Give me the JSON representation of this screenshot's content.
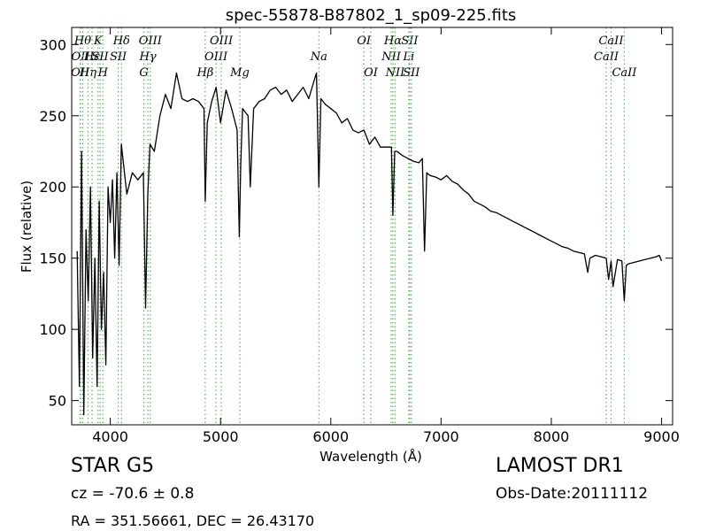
{
  "chart_data": {
    "type": "line",
    "title": "spec-55878-B87802_1_sp09-225.fits",
    "xlabel": "Wavelength (Å)",
    "ylabel": "Flux (relative)",
    "xlim": [
      3650,
      9100
    ],
    "ylim": [
      33,
      312
    ],
    "xticks": [
      4000,
      5000,
      6000,
      7000,
      8000,
      9000
    ],
    "yticks": [
      50,
      100,
      150,
      200,
      250,
      300
    ],
    "grid": false,
    "series": [
      {
        "color": "#000000",
        "x": [
          3700,
          3720,
          3740,
          3760,
          3780,
          3800,
          3820,
          3840,
          3860,
          3880,
          3900,
          3920,
          3940,
          3960,
          3980,
          4000,
          4020,
          4040,
          4060,
          4080,
          4100,
          4150,
          4200,
          4250,
          4300,
          4320,
          4340,
          4360,
          4400,
          4450,
          4500,
          4550,
          4600,
          4650,
          4700,
          4750,
          4800,
          4850,
          4861,
          4880,
          4920,
          4960,
          5000,
          5050,
          5100,
          5150,
          5170,
          5183,
          5200,
          5250,
          5270,
          5300,
          5350,
          5400,
          5450,
          5500,
          5550,
          5600,
          5650,
          5700,
          5750,
          5800,
          5850,
          5870,
          5892,
          5910,
          5950,
          6000,
          6050,
          6100,
          6150,
          6200,
          6250,
          6300,
          6350,
          6400,
          6450,
          6500,
          6550,
          6563,
          6580,
          6600,
          6650,
          6700,
          6750,
          6800,
          6830,
          6850,
          6870,
          6900,
          6950,
          7000,
          7050,
          7100,
          7150,
          7200,
          7250,
          7300,
          7350,
          7400,
          7450,
          7500,
          7550,
          7600,
          7650,
          7700,
          7750,
          7800,
          7850,
          7900,
          7950,
          8000,
          8050,
          8100,
          8150,
          8200,
          8250,
          8300,
          8330,
          8350,
          8400,
          8450,
          8498,
          8520,
          8542,
          8560,
          8600,
          8640,
          8662,
          8680,
          8700,
          8750,
          8800,
          8850,
          8900,
          8950,
          8980,
          9000
        ],
        "y": [
          155,
          60,
          225,
          40,
          170,
          120,
          200,
          80,
          150,
          60,
          190,
          100,
          140,
          75,
          200,
          175,
          205,
          150,
          210,
          145,
          230,
          195,
          210,
          205,
          210,
          115,
          195,
          230,
          225,
          250,
          265,
          255,
          280,
          262,
          260,
          262,
          260,
          255,
          190,
          245,
          260,
          270,
          245,
          268,
          255,
          240,
          165,
          215,
          255,
          250,
          200,
          255,
          260,
          262,
          268,
          270,
          265,
          268,
          260,
          265,
          270,
          262,
          275,
          280,
          200,
          262,
          258,
          255,
          252,
          245,
          248,
          240,
          238,
          240,
          230,
          235,
          228,
          228,
          228,
          180,
          225,
          225,
          222,
          220,
          218,
          217,
          220,
          155,
          210,
          208,
          207,
          205,
          208,
          204,
          202,
          198,
          195,
          190,
          188,
          186,
          183,
          182,
          180,
          178,
          176,
          174,
          172,
          170,
          168,
          166,
          164,
          162,
          160,
          158,
          157,
          155,
          154,
          153,
          140,
          150,
          152,
          151,
          150,
          135,
          148,
          130,
          149,
          148,
          120,
          145,
          146,
          147,
          148,
          149,
          150,
          151,
          152,
          148
        ]
      }
    ],
    "line_markers": [
      {
        "wavelength": 3727,
        "label": "OII",
        "row": 3,
        "color": "#58b758"
      },
      {
        "wavelength": 3730,
        "label": "OII",
        "row": 2,
        "color": "#58b758"
      },
      {
        "wavelength": 3750,
        "label": "Hθ",
        "row": 1,
        "color": "#58b758"
      },
      {
        "wavelength": 3798,
        "label": "Hη",
        "row": 3,
        "color": "#58b758"
      },
      {
        "wavelength": 3835,
        "label": "Hε",
        "row": 2,
        "color": "#58b758"
      },
      {
        "wavelength": 3889,
        "label": "K",
        "row": 1,
        "color": "#58b758"
      },
      {
        "wavelength": 3907,
        "label": "SII",
        "row": 2,
        "color": "#58b758"
      },
      {
        "wavelength": 3933,
        "label": "H",
        "row": 3,
        "color": "#58b758"
      },
      {
        "wavelength": 4072,
        "label": "SII",
        "row": 2,
        "color": "#58b758"
      },
      {
        "wavelength": 4102,
        "label": "Hδ",
        "row": 1,
        "color": "#58b758"
      },
      {
        "wavelength": 4305,
        "label": "G",
        "row": 3,
        "color": "#58b758"
      },
      {
        "wavelength": 4341,
        "label": "Hγ",
        "row": 2,
        "color": "#58b758"
      },
      {
        "wavelength": 4363,
        "label": "OIII",
        "row": 1,
        "color": "#58b758"
      },
      {
        "wavelength": 4861,
        "label": "Hβ",
        "row": 3,
        "color": "#58b758"
      },
      {
        "wavelength": 4959,
        "label": "OIII",
        "row": 2,
        "color": "#58b758"
      },
      {
        "wavelength": 5007,
        "label": "OIII",
        "row": 1,
        "color": "#58b758"
      },
      {
        "wavelength": 5175,
        "label": "Mg",
        "row": 3,
        "color": "#58b758"
      },
      {
        "wavelength": 5892,
        "label": "Na",
        "row": 2,
        "color": "#58b758"
      },
      {
        "wavelength": 6300,
        "label": "OI",
        "row": 1,
        "color": "#58b758"
      },
      {
        "wavelength": 6363,
        "label": "OI",
        "row": 3,
        "color": "#58b758"
      },
      {
        "wavelength": 6548,
        "label": "NII",
        "row": 2,
        "color": "#58b758"
      },
      {
        "wavelength": 6563,
        "label": "Hα",
        "row": 1,
        "color": "#58b758"
      },
      {
        "wavelength": 6583,
        "label": "NII",
        "row": 3,
        "color": "#58b758"
      },
      {
        "wavelength": 6707,
        "label": "Li",
        "row": 2,
        "color": "#58b758"
      },
      {
        "wavelength": 6716,
        "label": "SII",
        "row": 1,
        "color": "#58b758"
      },
      {
        "wavelength": 6731,
        "label": "SII",
        "row": 3,
        "color": "#58b758"
      },
      {
        "wavelength": 8498,
        "label": "CaII",
        "row": 2,
        "color": "#58b758"
      },
      {
        "wavelength": 8542,
        "label": "CaII",
        "row": 1,
        "color": "#58b758"
      },
      {
        "wavelength": 8662,
        "label": "CaII",
        "row": 3,
        "color": "#58b758"
      }
    ]
  },
  "info": {
    "object_class": "STAR   G5",
    "survey": "LAMOST DR1",
    "redshift_text": "cz = -70.6 ± 0.8",
    "obs_date": "Obs-Date:20111112",
    "coords": "RA = 351.56661, DEC = 26.43170"
  }
}
